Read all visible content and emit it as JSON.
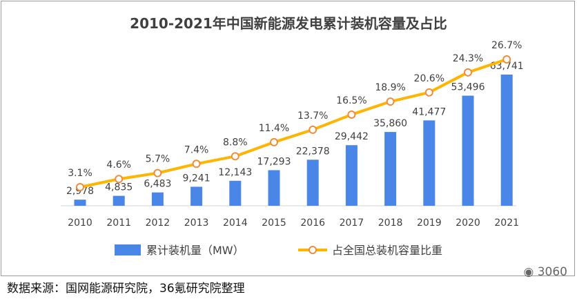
{
  "chart_data": {
    "type": "bar",
    "title": "2010-2021年中国新能源发电累计装机容量及占比",
    "categories": [
      "2010",
      "2011",
      "2012",
      "2013",
      "2014",
      "2015",
      "2016",
      "2017",
      "2018",
      "2019",
      "2020",
      "2021"
    ],
    "series": [
      {
        "name": "累计装机量（MW）",
        "type": "bar",
        "values": [
          2978,
          4835,
          6483,
          9241,
          12143,
          17293,
          22378,
          29442,
          35860,
          41477,
          53496,
          63741
        ],
        "labels": [
          "2,978",
          "4,835",
          "6,483",
          "9,241",
          "12,143",
          "17,293",
          "22,378",
          "29,442",
          "35,860",
          "41,477",
          "53,496",
          "63,741"
        ],
        "color": "#4a86e8"
      },
      {
        "name": "占全国总装机容量比重",
        "type": "line",
        "values": [
          3.1,
          4.6,
          5.7,
          7.4,
          8.8,
          11.4,
          13.7,
          16.5,
          18.9,
          20.6,
          24.3,
          26.7
        ],
        "labels": [
          "3.1%",
          "4.6%",
          "5.7%",
          "7.4%",
          "8.8%",
          "11.4%",
          "13.7%",
          "16.5%",
          "18.9%",
          "20.6%",
          "24.3%",
          "26.7%"
        ],
        "color": "#ffb400"
      }
    ],
    "legend_position": "bottom",
    "grid": false
  },
  "source": "数据来源：国网能源研究院，36氪研究院整理",
  "watermark": "3060"
}
